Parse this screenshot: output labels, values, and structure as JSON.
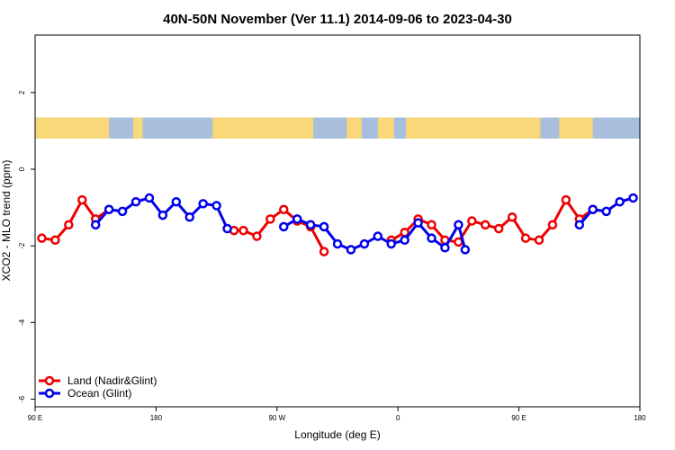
{
  "chart_data": {
    "type": "line",
    "title": "40N-50N November (Ver 11.1)   2014-09-06 to 2023-04-30",
    "xlabel": "Longitude (deg E)",
    "ylabel": "XCO2 - MLO trend (ppm)",
    "xlim": [
      90,
      540
    ],
    "ylim": [
      -6.2,
      3.5
    ],
    "x_ticks": [
      {
        "value": 90,
        "label": "90 E"
      },
      {
        "value": 180,
        "label": "180"
      },
      {
        "value": 270,
        "label": "90 W"
      },
      {
        "value": 360,
        "label": "0"
      },
      {
        "value": 450,
        "label": "90 E"
      },
      {
        "value": 540,
        "label": "180"
      }
    ],
    "y_ticks": [
      {
        "value": 2,
        "label": "2"
      },
      {
        "value": 0,
        "label": "0"
      },
      {
        "value": -2,
        "label": "-2"
      },
      {
        "value": -4,
        "label": "-4"
      },
      {
        "value": -6,
        "label": "-6"
      }
    ],
    "grid": false,
    "legend_position": "bottom-left",
    "map_band": {
      "y_top": 1.35,
      "y_bottom": 0.8,
      "ocean_color": "#a8bedc",
      "land_color": "#f8d878"
    },
    "series": [
      {
        "name": "Land (Nadir&Glint)",
        "color": "#ee0000",
        "segments": [
          [
            [
              95,
              -1.8
            ],
            [
              105,
              -1.85
            ],
            [
              115,
              -1.45
            ],
            [
              125,
              -0.8
            ],
            [
              135,
              -1.3
            ],
            [
              145,
              -1.05
            ]
          ],
          [
            [
              238,
              -1.6
            ],
            [
              245,
              -1.6
            ],
            [
              255,
              -1.75
            ],
            [
              265,
              -1.3
            ],
            [
              275,
              -1.05
            ],
            [
              285,
              -1.35
            ],
            [
              295,
              -1.5
            ],
            [
              305,
              -2.15
            ]
          ],
          [
            [
              355,
              -1.85
            ],
            [
              365,
              -1.65
            ],
            [
              375,
              -1.3
            ],
            [
              385,
              -1.45
            ],
            [
              395,
              -1.85
            ],
            [
              405,
              -1.9
            ],
            [
              415,
              -1.35
            ],
            [
              425,
              -1.45
            ],
            [
              435,
              -1.55
            ],
            [
              445,
              -1.25
            ],
            [
              455,
              -1.8
            ],
            [
              465,
              -1.85
            ],
            [
              475,
              -1.45
            ],
            [
              485,
              -0.8
            ],
            [
              495,
              -1.3
            ],
            [
              505,
              -1.05
            ]
          ]
        ]
      },
      {
        "name": "Ocean (Glint)",
        "color": "#0000ee",
        "segments": [
          [
            [
              135,
              -1.45
            ],
            [
              145,
              -1.05
            ],
            [
              155,
              -1.1
            ],
            [
              165,
              -0.85
            ],
            [
              175,
              -0.75
            ],
            [
              185,
              -1.2
            ],
            [
              195,
              -0.85
            ],
            [
              205,
              -1.25
            ],
            [
              215,
              -0.9
            ],
            [
              225,
              -0.95
            ],
            [
              233,
              -1.55
            ]
          ],
          [
            [
              275,
              -1.5
            ],
            [
              285,
              -1.3
            ],
            [
              295,
              -1.45
            ],
            [
              305,
              -1.5
            ],
            [
              315,
              -1.95
            ],
            [
              325,
              -2.1
            ],
            [
              335,
              -1.95
            ],
            [
              345,
              -1.75
            ],
            [
              355,
              -1.95
            ],
            [
              365,
              -1.85
            ],
            [
              375,
              -1.4
            ],
            [
              385,
              -1.8
            ],
            [
              395,
              -2.05
            ],
            [
              405,
              -1.45
            ],
            [
              410,
              -2.1
            ]
          ]
        ],
        "segments_extra": [
          [
            [
              495,
              -1.45
            ],
            [
              505,
              -1.05
            ],
            [
              515,
              -1.1
            ],
            [
              525,
              -0.85
            ],
            [
              535,
              -0.75
            ]
          ]
        ]
      }
    ]
  }
}
